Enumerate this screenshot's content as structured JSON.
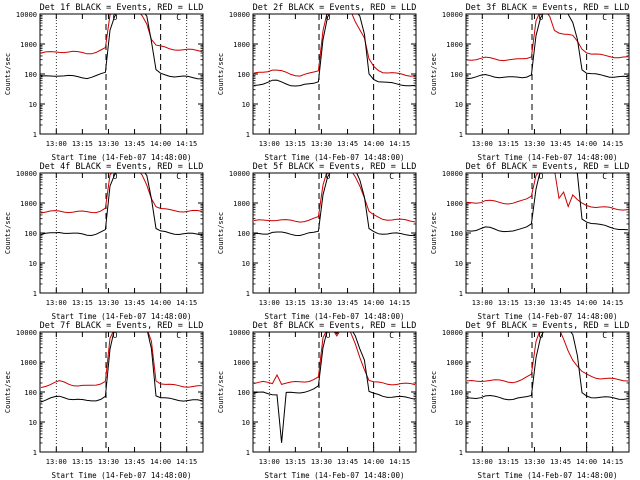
{
  "chart_data": [
    {
      "type": "line",
      "title": "Det 1f BLACK = Events, RED = LLD",
      "ylabel": "Counts/sec",
      "xlabel": "Start Time (14-Feb-07 14:48:00)",
      "x_ticks": [
        "13:00",
        "13:15",
        "13:30",
        "13:45",
        "14:00",
        "14:15"
      ],
      "y_ticks": [
        "1",
        "10",
        "100",
        "1000",
        "10000"
      ],
      "yscale": "log",
      "ylim": [
        1,
        10000
      ],
      "markers": [
        "O",
        "C"
      ],
      "series": [
        {
          "color": "#000000",
          "values": [
            80,
            82,
            85,
            90,
            92,
            88,
            85,
            82,
            80,
            78,
            76,
            80,
            85,
            95,
            110,
            3000,
            9000,
            10000,
            10000,
            10000,
            10000,
            10000,
            10000,
            9000,
            1200,
            130,
            100,
            95,
            90,
            85,
            82,
            80,
            78,
            76,
            75,
            74
          ]
        },
        {
          "color": "#cc0000",
          "values": [
            500,
            510,
            520,
            540,
            560,
            560,
            550,
            540,
            520,
            510,
            500,
            510,
            540,
            600,
            700,
            9000,
            10000,
            10000,
            10000,
            10000,
            10000,
            10000,
            9000,
            5000,
            1500,
            900,
            800,
            750,
            700,
            680,
            660,
            640,
            630,
            620,
            610,
            600
          ]
        }
      ]
    },
    {
      "type": "line",
      "title": "Det 2f BLACK = Events, RED = LLD",
      "ylabel": "Counts/sec",
      "xlabel": "Start Time (14-Feb-07 14:48:00)",
      "x_ticks": [
        "13:00",
        "13:15",
        "13:30",
        "13:45",
        "14:00",
        "14:15"
      ],
      "y_ticks": [
        "1",
        "10",
        "100",
        "1000",
        "10000"
      ],
      "yscale": "log",
      "ylim": [
        1,
        10000
      ],
      "markers": [
        "O",
        "C"
      ],
      "series": [
        {
          "color": "#000000",
          "values": [
            40,
            45,
            50,
            55,
            60,
            58,
            52,
            48,
            44,
            42,
            40,
            42,
            45,
            50,
            60,
            1500,
            8000,
            10000,
            10000,
            10000,
            10000,
            10000,
            10000,
            8000,
            2000,
            100,
            70,
            60,
            55,
            50,
            48,
            46,
            45,
            44,
            42,
            40
          ]
        },
        {
          "color": "#cc0000",
          "values": [
            100,
            110,
            120,
            130,
            140,
            130,
            120,
            110,
            100,
            95,
            90,
            95,
            100,
            110,
            130,
            3000,
            10000,
            10000,
            10000,
            10000,
            10000,
            10000,
            6000,
            3000,
            1500,
            300,
            180,
            140,
            120,
            110,
            105,
            100,
            98,
            95,
            92,
            90
          ]
        }
      ]
    },
    {
      "type": "line",
      "title": "Det 3f BLACK = Events, RED = LLD",
      "ylabel": "Counts/sec",
      "xlabel": "Start Time (14-Feb-07 14:48:00)",
      "x_ticks": [
        "13:00",
        "13:15",
        "13:30",
        "13:45",
        "14:00",
        "14:15"
      ],
      "y_ticks": [
        "1",
        "10",
        "100",
        "1000",
        "10000"
      ],
      "yscale": "log",
      "ylim": [
        1,
        10000
      ],
      "markers": [
        "O",
        "C"
      ],
      "series": [
        {
          "color": "#000000",
          "values": [
            75,
            78,
            80,
            85,
            90,
            88,
            85,
            80,
            78,
            76,
            75,
            78,
            80,
            85,
            95,
            1800,
            7000,
            10000,
            10000,
            10000,
            10000,
            10000,
            9000,
            5000,
            1500,
            150,
            110,
            100,
            95,
            90,
            88,
            85,
            82,
            80,
            78,
            76
          ]
        },
        {
          "color": "#cc0000",
          "values": [
            300,
            310,
            320,
            330,
            340,
            330,
            320,
            310,
            300,
            295,
            290,
            300,
            320,
            350,
            400,
            6000,
            10000,
            10000,
            8000,
            3000,
            2500,
            2200,
            2000,
            1800,
            1200,
            700,
            550,
            480,
            450,
            420,
            400,
            390,
            380,
            370,
            360,
            350
          ]
        }
      ]
    },
    {
      "type": "line",
      "title": "Det 4f BLACK = Events, RED = LLD",
      "ylabel": "Counts/sec",
      "xlabel": "Start Time (14-Feb-07 14:48:00)",
      "x_ticks": [
        "13:00",
        "13:15",
        "13:30",
        "13:45",
        "14:00",
        "14:15"
      ],
      "y_ticks": [
        "1",
        "10",
        "100",
        "1000",
        "10000"
      ],
      "yscale": "log",
      "ylim": [
        1,
        10000
      ],
      "markers": [
        "O",
        "C"
      ],
      "series": [
        {
          "color": "#000000",
          "values": [
            90,
            92,
            95,
            100,
            110,
            105,
            100,
            95,
            92,
            90,
            88,
            90,
            95,
            105,
            120,
            3500,
            9000,
            10000,
            10000,
            10000,
            10000,
            10000,
            10000,
            9000,
            1500,
            140,
            110,
            105,
            100,
            98,
            96,
            95,
            93,
            92,
            91,
            90
          ]
        },
        {
          "color": "#cc0000",
          "values": [
            500,
            505,
            510,
            520,
            530,
            525,
            520,
            510,
            505,
            500,
            500,
            505,
            520,
            560,
            650,
            8000,
            10000,
            10000,
            10000,
            10000,
            10000,
            10000,
            8000,
            4000,
            1500,
            800,
            650,
            600,
            570,
            560,
            550,
            540,
            535,
            530,
            525,
            520
          ]
        }
      ]
    },
    {
      "type": "line",
      "title": "Det 5f BLACK = Events, RED = LLD",
      "ylabel": "Counts/sec",
      "xlabel": "Start Time (14-Feb-07 14:48:00)",
      "x_ticks": [
        "13:00",
        "13:15",
        "13:30",
        "13:45",
        "14:00",
        "14:15"
      ],
      "y_ticks": [
        "1",
        "10",
        "100",
        "1000",
        "10000"
      ],
      "yscale": "log",
      "ylim": [
        1,
        10000
      ],
      "markers": [
        "O",
        "C"
      ],
      "series": [
        {
          "color": "#000000",
          "values": [
            90,
            92,
            95,
            100,
            110,
            105,
            100,
            95,
            92,
            90,
            88,
            90,
            95,
            100,
            115,
            2000,
            8000,
            10000,
            10000,
            10000,
            10000,
            10000,
            10000,
            6000,
            1500,
            130,
            110,
            100,
            98,
            96,
            95,
            93,
            92,
            91,
            90,
            88
          ]
        },
        {
          "color": "#cc0000",
          "values": [
            250,
            255,
            260,
            270,
            280,
            275,
            270,
            260,
            255,
            250,
            250,
            255,
            265,
            290,
            330,
            4000,
            10000,
            10000,
            10000,
            10000,
            10000,
            10000,
            8000,
            4000,
            1500,
            500,
            380,
            330,
            300,
            290,
            280,
            275,
            270,
            265,
            260,
            255
          ]
        }
      ]
    },
    {
      "type": "line",
      "title": "Det 6f BLACK = Events, RED = LLD",
      "ylabel": "Counts/sec",
      "xlabel": "Start Time (14-Feb-07 14:48:00)",
      "x_ticks": [
        "13:00",
        "13:15",
        "13:30",
        "13:45",
        "14:00",
        "14:15"
      ],
      "y_ticks": [
        "1",
        "10",
        "100",
        "1000",
        "10000"
      ],
      "yscale": "log",
      "ylim": [
        1,
        10000
      ],
      "markers": [
        "O",
        "C"
      ],
      "series": [
        {
          "color": "#000000",
          "values": [
            120,
            125,
            130,
            140,
            150,
            145,
            135,
            125,
            120,
            115,
            110,
            120,
            140,
            170,
            220,
            3000,
            10000,
            10000,
            10000,
            10000,
            10000,
            10000,
            10000,
            10000,
            9000,
            300,
            250,
            220,
            200,
            180,
            170,
            160,
            150,
            140,
            130,
            120
          ]
        },
        {
          "color": "#cc0000",
          "values": [
            1000,
            1020,
            1050,
            1100,
            1200,
            1150,
            1100,
            1050,
            1020,
            1000,
            1000,
            1050,
            1150,
            1350,
            1800,
            9000,
            10000,
            10000,
            10000,
            10000,
            1500,
            2500,
            800,
            1800,
            1200,
            950,
            850,
            800,
            750,
            720,
            700,
            680,
            660,
            640,
            620,
            600
          ]
        }
      ]
    },
    {
      "type": "line",
      "title": "Det 7f BLACK = Events, RED = LLD",
      "ylabel": "Counts/sec",
      "xlabel": "Start Time (14-Feb-07 14:48:00)",
      "x_ticks": [
        "13:00",
        "13:15",
        "13:30",
        "13:45",
        "14:00",
        "14:15"
      ],
      "y_ticks": [
        "1",
        "10",
        "100",
        "1000",
        "10000"
      ],
      "yscale": "log",
      "ylim": [
        1,
        10000
      ],
      "markers": [
        "O",
        "C"
      ],
      "series": [
        {
          "color": "#000000",
          "values": [
            50,
            55,
            60,
            65,
            70,
            68,
            62,
            58,
            55,
            52,
            50,
            52,
            55,
            60,
            70,
            2500,
            10000,
            10000,
            10000,
            10000,
            10000,
            10000,
            10000,
            10000,
            3000,
            80,
            65,
            60,
            58,
            56,
            55,
            54,
            53,
            52,
            51,
            50
          ]
        },
        {
          "color": "#cc0000",
          "values": [
            150,
            165,
            180,
            200,
            220,
            210,
            190,
            175,
            165,
            160,
            155,
            160,
            175,
            200,
            240,
            6000,
            10000,
            10000,
            10000,
            10000,
            10000,
            10000,
            10000,
            10000,
            5000,
            250,
            200,
            180,
            170,
            165,
            160,
            158,
            156,
            155,
            154,
            152
          ]
        }
      ]
    },
    {
      "type": "line",
      "title": "Det 8f BLACK = Events, RED = LLD",
      "ylabel": "Counts/sec",
      "xlabel": "Start Time (14-Feb-07 14:48:00)",
      "x_ticks": [
        "13:00",
        "13:15",
        "13:30",
        "13:45",
        "14:00",
        "14:15"
      ],
      "y_ticks": [
        "1",
        "10",
        "100",
        "1000",
        "10000"
      ],
      "yscale": "log",
      "ylim": [
        1,
        10000
      ],
      "markers": [
        "O",
        "C"
      ],
      "series": [
        {
          "color": "#000000",
          "values": [
            90,
            92,
            95,
            90,
            88,
            85,
            2,
            90,
            92,
            95,
            100,
            105,
            110,
            120,
            150,
            3000,
            10000,
            10000,
            9000,
            10000,
            10000,
            10000,
            8000,
            3000,
            1200,
            100,
            85,
            80,
            75,
            72,
            70,
            68,
            66,
            65,
            64,
            62
          ]
        },
        {
          "color": "#cc0000",
          "values": [
            200,
            205,
            210,
            200,
            195,
            400,
            190,
            195,
            200,
            210,
            220,
            230,
            240,
            260,
            300,
            6000,
            10000,
            10000,
            8000,
            10000,
            10000,
            9000,
            4000,
            1500,
            600,
            250,
            210,
            200,
            195,
            190,
            188,
            186,
            185,
            184,
            183,
            182
          ]
        }
      ]
    },
    {
      "type": "line",
      "title": "Det 9f BLACK = Events, RED = LLD",
      "ylabel": "Counts/sec",
      "xlabel": "Start Time (14-Feb-07 14:48:00)",
      "x_ticks": [
        "13:00",
        "13:15",
        "13:30",
        "13:45",
        "14:00",
        "14:15"
      ],
      "y_ticks": [
        "1",
        "10",
        "100",
        "1000",
        "10000"
      ],
      "yscale": "log",
      "ylim": [
        1,
        10000
      ],
      "markers": [
        "O",
        "C"
      ],
      "series": [
        {
          "color": "#000000",
          "values": [
            60,
            62,
            65,
            70,
            75,
            72,
            68,
            65,
            62,
            60,
            58,
            60,
            62,
            68,
            80,
            1500,
            7000,
            10000,
            10000,
            10000,
            10000,
            10000,
            10000,
            8000,
            1500,
            90,
            75,
            70,
            68,
            66,
            65,
            64,
            63,
            62,
            61,
            60
          ]
        },
        {
          "color": "#cc0000",
          "values": [
            220,
            225,
            230,
            240,
            250,
            245,
            240,
            235,
            230,
            225,
            220,
            230,
            250,
            300,
            380,
            5000,
            10000,
            10000,
            10000,
            10000,
            10000,
            6000,
            2500,
            1200,
            700,
            450,
            380,
            340,
            310,
            290,
            280,
            270,
            265,
            260,
            255,
            250
          ]
        }
      ]
    }
  ]
}
